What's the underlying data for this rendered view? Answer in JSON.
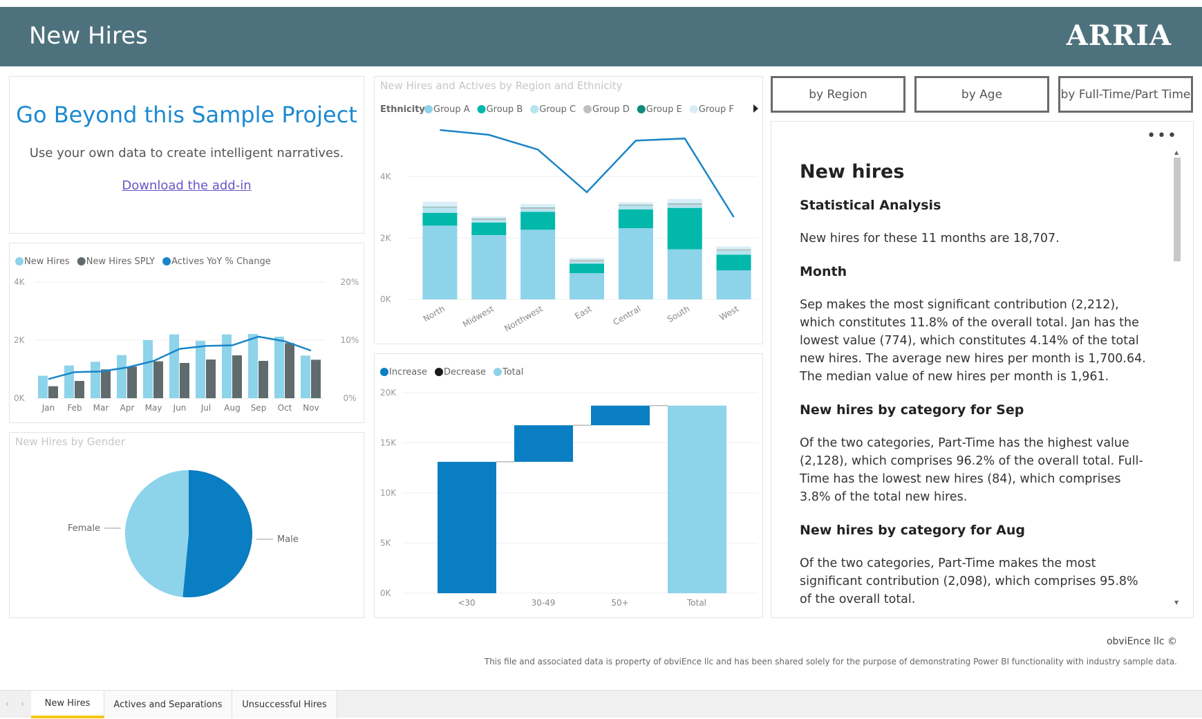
{
  "header": {
    "title": "New Hires",
    "logo": "ARRIA"
  },
  "promo": {
    "heading": "Go Beyond this Sample Project",
    "subtitle": "Use your own data to create intelligent narratives.",
    "link": "Download the add-in"
  },
  "buttons": [
    "by Region",
    "by Age",
    "by Full-Time/Part Time"
  ],
  "narrative": {
    "title": "New hires",
    "sections": [
      {
        "heading": "Statistical Analysis",
        "text": "New hires for these 11 months are 18,707."
      },
      {
        "heading": "Month",
        "text": "Sep makes the most significant contribution (2,212), which constitutes 11.8% of the overall total. Jan has the lowest value (774), which constitutes 4.14% of the total new hires. The average new hires per month is 1,700.64. The median value of new hires per month is 1,961."
      },
      {
        "heading": "New hires by category for Sep",
        "text": "Of the two categories, Part-Time has the highest value (2,128), which comprises 96.2% of the overall total. Full-Time has the lowest new hires (84), which comprises 3.8% of the total new hires."
      },
      {
        "heading": "New hires by category for Aug",
        "text": "Of the two categories, Part-Time makes the most significant contribution (2,098), which comprises 95.8% of the overall total."
      }
    ]
  },
  "footer": {
    "owner": "obviEnce llc ©",
    "disclaimer": "This file and associated data is property of obviEnce llc and has been shared solely for the purpose of demonstrating Power BI functionality with industry sample data."
  },
  "tabs": [
    {
      "label": "New Hires",
      "active": true
    },
    {
      "label": "Actives and Separations"
    },
    {
      "label": "Unsuccessful Hires"
    }
  ],
  "chart_data": [
    {
      "id": "monthly",
      "type": "bar",
      "title": "",
      "categories": [
        "Jan",
        "Feb",
        "Mar",
        "Apr",
        "May",
        "Jun",
        "Jul",
        "Aug",
        "Sep",
        "Oct",
        "Nov"
      ],
      "series": [
        {
          "name": "New Hires",
          "color": "#8dd3ea",
          "values": [
            774,
            1127,
            1254,
            1484,
            2000,
            2198,
            1976,
            2198,
            2212,
            2119,
            1468
          ]
        },
        {
          "name": "New Hires SPLY",
          "color": "#5f6b6d",
          "values": [
            413,
            595,
            992,
            1087,
            1270,
            1214,
            1333,
            1476,
            1286,
            1897,
            1325
          ]
        }
      ],
      "line": {
        "name": "Actives YoY % Change",
        "color": "#1a84c7",
        "values": [
          3.3,
          4.5,
          4.6,
          5.3,
          6.4,
          8.5,
          9.0,
          9.1,
          10.6,
          9.8,
          8.2
        ]
      },
      "ylim": [
        0,
        4000
      ],
      "yticks": [
        "0K",
        "2K",
        "4K"
      ],
      "y2lim": [
        0,
        20
      ],
      "y2ticks": [
        "0%",
        "10%",
        "20%"
      ]
    },
    {
      "id": "region",
      "type": "bar",
      "title": "New Hires and Actives by Region and Ethnicity",
      "legend_title": "Ethnicity",
      "categories": [
        "North",
        "Midwest",
        "Northwest",
        "East",
        "Central",
        "South",
        "West"
      ],
      "series": [
        {
          "name": "Group A",
          "color": "#8dd3ea",
          "values": [
            2406,
            2098,
            2271,
            857,
            2323,
            1632,
            947
          ]
        },
        {
          "name": "Group B",
          "color": "#01b8aa",
          "values": [
            414,
            406,
            586,
            308,
            609,
            1353,
            511
          ]
        },
        {
          "name": "Group C",
          "color": "#b6e3f0",
          "values": [
            170,
            90,
            90,
            70,
            120,
            90,
            130
          ]
        },
        {
          "name": "Group D",
          "color": "#c0c0c0",
          "values": [
            25,
            40,
            40,
            50,
            25,
            40,
            40
          ]
        },
        {
          "name": "Group E",
          "color": "#0e8a7d",
          "values": [
            10,
            8,
            10,
            5,
            10,
            10,
            5
          ]
        },
        {
          "name": "Group F",
          "color": "#d9eef6",
          "values": [
            160,
            60,
            110,
            60,
            80,
            150,
            90
          ]
        }
      ],
      "line": {
        "name": "Actives",
        "color": "#1a84c7",
        "values": [
          5526,
          5368,
          4887,
          3496,
          5180,
          5248,
          2684
        ]
      },
      "ylim": [
        0,
        6000
      ],
      "yticks": [
        "0K",
        "2K",
        "4K"
      ]
    },
    {
      "id": "waterfall",
      "type": "bar",
      "title": "",
      "legend": [
        {
          "name": "Increase",
          "color": "#0a7ec2"
        },
        {
          "name": "Decrease",
          "color": "#1a1a1a"
        },
        {
          "name": "Total",
          "color": "#8dd3ea"
        }
      ],
      "categories": [
        "<30",
        "30-49",
        "50+",
        "Total"
      ],
      "values": [
        13100,
        3650,
        1957,
        18707
      ],
      "ylim": [
        0,
        20000
      ],
      "yticks": [
        "0K",
        "5K",
        "10K",
        "15K",
        "20K"
      ]
    },
    {
      "id": "gender",
      "type": "pie",
      "title": "New Hires by Gender",
      "slices": [
        {
          "label": "Male",
          "value": 51.5,
          "color": "#0a7ec2"
        },
        {
          "label": "Female",
          "value": 48.5,
          "color": "#8dd3ea"
        }
      ]
    }
  ]
}
